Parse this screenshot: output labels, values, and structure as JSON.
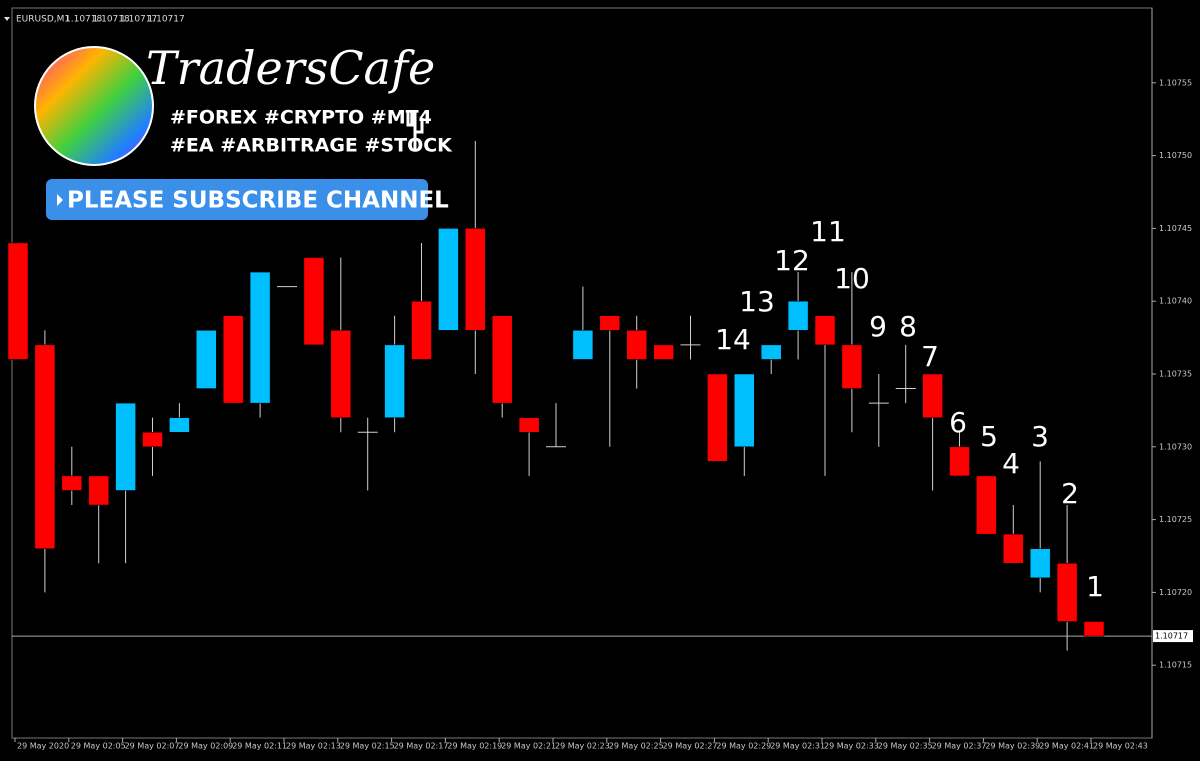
{
  "chart_data": {
    "type": "candlestick",
    "symbol": "EURUSD,M1",
    "quote": [
      1.10718,
      1.10718,
      1.10717,
      1.10717
    ],
    "brand": {
      "name": "TradersCafe",
      "tags_1": "#FOREX #CRYPTO #MT4",
      "tags_2": "#EA #ARBITRAGE #STOCK",
      "button": "PLEASE SUBSCRIBE CHANNEL"
    },
    "categories": [
      "29 May 2020",
      null,
      "29 May 02:05",
      null,
      "29 May 02:07",
      null,
      "29 May 02:09",
      null,
      "29 May 02:11",
      null,
      "29 May 02:13",
      null,
      "29 May 02:15",
      null,
      "29 May 02:17",
      null,
      "29 May 02:19",
      null,
      "29 May 02:21",
      null,
      "29 May 02:23",
      null,
      "29 May 02:25",
      null,
      "29 May 02:27",
      null,
      "29 May 02:29",
      null,
      "29 May 02:31",
      null,
      "29 May 02:33",
      null,
      "29 May 02:35",
      null,
      "29 May 02:37",
      null,
      "29 May 02:39",
      null,
      "29 May 02:41",
      null,
      "29 May 02:43"
    ],
    "open": [
      1.10744,
      1.10737,
      1.10728,
      1.10728,
      1.10727,
      1.10731,
      1.10731,
      1.10734,
      1.10739,
      1.10733,
      1.10741,
      1.10743,
      1.10738,
      1.10731,
      1.10732,
      1.1074,
      1.10738,
      1.10745,
      1.10739,
      1.10732,
      1.1073,
      1.10736,
      1.10739,
      1.10738,
      1.10737,
      1.10737,
      1.10735,
      1.1073,
      1.10736,
      1.10738,
      1.10739,
      1.10737,
      1.10733,
      1.10734,
      1.10735,
      1.1073,
      1.10728,
      1.10724,
      1.10721,
      1.10722,
      1.10718
    ],
    "high": [
      1.10744,
      1.10738,
      1.1073,
      1.10728,
      1.10733,
      1.10732,
      1.10733,
      1.10738,
      1.10739,
      1.10742,
      1.10741,
      1.10743,
      1.10743,
      1.10732,
      1.10739,
      1.10744,
      1.10745,
      1.10751,
      1.10739,
      1.10732,
      1.10733,
      1.10741,
      1.10739,
      1.10739,
      1.10737,
      1.10739,
      1.10735,
      1.10735,
      1.10737,
      1.10742,
      1.10739,
      1.10742,
      1.10735,
      1.10737,
      1.10735,
      1.10731,
      1.10728,
      1.10726,
      1.10729,
      1.10726,
      1.10718
    ],
    "low": [
      1.10736,
      1.1072,
      1.10726,
      1.10722,
      1.10722,
      1.10728,
      1.10731,
      1.10734,
      1.10733,
      1.10732,
      1.10741,
      1.10737,
      1.10731,
      1.10727,
      1.10731,
      1.10736,
      1.10738,
      1.10735,
      1.10732,
      1.10728,
      1.1073,
      1.10736,
      1.1073,
      1.10734,
      1.10736,
      1.10736,
      1.10729,
      1.10728,
      1.10735,
      1.10736,
      1.10728,
      1.10731,
      1.1073,
      1.10733,
      1.10727,
      1.10728,
      1.10724,
      1.10722,
      1.1072,
      1.10716,
      1.10717
    ],
    "close": [
      1.10736,
      1.10723,
      1.10727,
      1.10726,
      1.10733,
      1.1073,
      1.10732,
      1.10738,
      1.10733,
      1.10742,
      1.10741,
      1.10737,
      1.10732,
      1.10731,
      1.10737,
      1.10736,
      1.10745,
      1.10738,
      1.10733,
      1.10731,
      1.1073,
      1.10738,
      1.10738,
      1.10736,
      1.10736,
      1.10737,
      1.10729,
      1.10735,
      1.10737,
      1.1074,
      1.10737,
      1.10734,
      1.10733,
      1.10734,
      1.10732,
      1.10728,
      1.10724,
      1.10722,
      1.10723,
      1.10718,
      1.10717
    ],
    "up_color": "#00bfff",
    "down_color": "#ff0000",
    "wick_color": "#d0d0d0",
    "last_price": 1.10717,
    "annotations": [
      "1",
      "2",
      "3",
      "4",
      "5",
      "6",
      "7",
      "8",
      "9",
      "10",
      "11",
      "12",
      "13",
      "14"
    ],
    "ylim": [
      1.1071,
      1.1076
    ],
    "yticks": [
      1.10715,
      {
        "value": 1.1072,
        "label": "1.10720"
      },
      1.10725,
      {
        "value": 1.1073,
        "label": "1.10730"
      },
      1.10735,
      {
        "value": 1.1074,
        "label": "1.10740"
      },
      1.10745,
      {
        "value": 1.1075,
        "label": "1.10750"
      },
      1.10755
    ]
  }
}
